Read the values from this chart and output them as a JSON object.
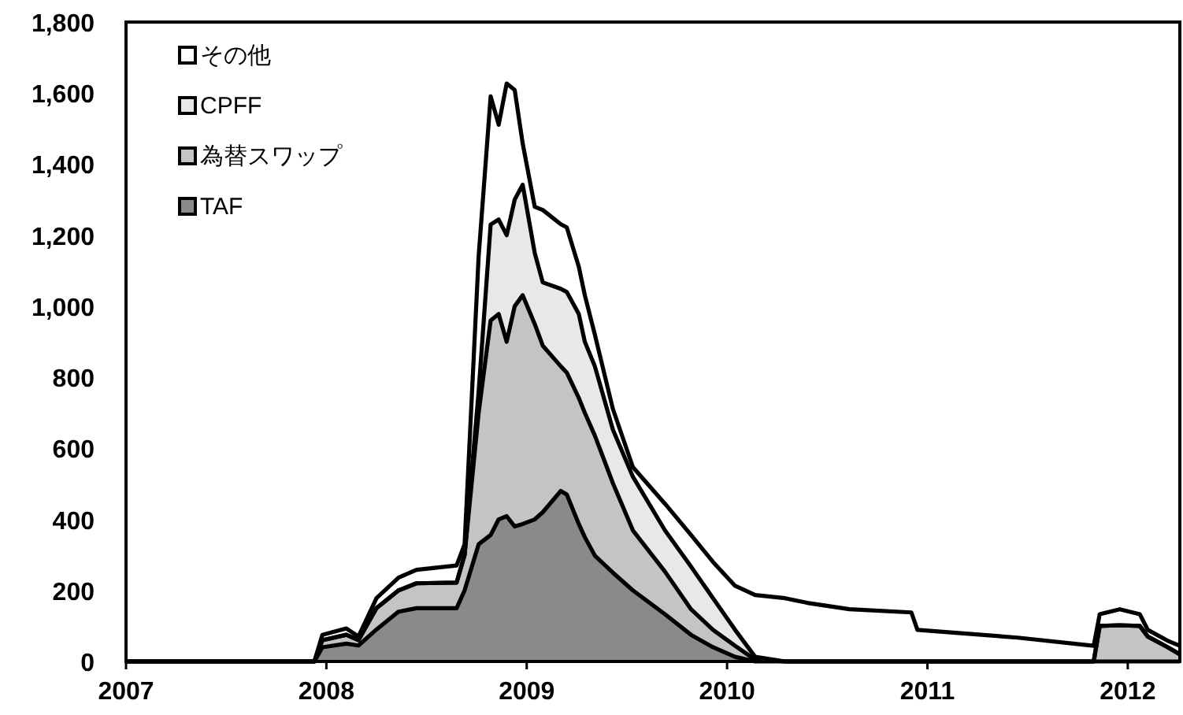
{
  "chart_data": {
    "type": "area",
    "stacked": true,
    "legend": "top left",
    "grid": false,
    "x": [
      2007.0,
      2007.94,
      2007.98,
      2008.1,
      2008.16,
      2008.25,
      2008.36,
      2008.45,
      2008.65,
      2008.69,
      2008.76,
      2008.82,
      2008.86,
      2008.9,
      2008.94,
      2008.98,
      2009.04,
      2009.08,
      2009.17,
      2009.2,
      2009.26,
      2009.29,
      2009.34,
      2009.43,
      2009.53,
      2009.69,
      2009.82,
      2009.93,
      2010.04,
      2010.14,
      2010.29,
      2010.4,
      2010.61,
      2010.92,
      2010.95,
      2011.45,
      2011.83,
      2011.86,
      2011.96,
      2012.06,
      2012.1,
      2012.2,
      2012.26
    ],
    "xlim": [
      2007,
      2012.26
    ],
    "xticks": [
      2007,
      2008,
      2009,
      2010,
      2011,
      2012
    ],
    "ylim": [
      0,
      1800
    ],
    "yticks": [
      0,
      200,
      400,
      600,
      800,
      {
        "value": 1000,
        "label": "1,000"
      },
      {
        "value": 1200,
        "label": "1,200"
      },
      {
        "value": 1400,
        "label": "1,400"
      },
      {
        "value": 1600,
        "label": "1,600"
      },
      {
        "value": 1800,
        "label": "1,800"
      }
    ],
    "series": [
      {
        "name": "TAF",
        "color": "#8a8a8a",
        "values": [
          0,
          0,
          40,
          50,
          45,
          90,
          140,
          150,
          150,
          200,
          330,
          356,
          400,
          409,
          380,
          387,
          400,
          420,
          480,
          470,
          387,
          350,
          298,
          250,
          200,
          133,
          75,
          40,
          13,
          0,
          0,
          0,
          0,
          0,
          0,
          0,
          0,
          0,
          0,
          0,
          0,
          0,
          0
        ]
      },
      {
        "name": "為替スワップ",
        "color": "#c4c4c4",
        "values": [
          0,
          0,
          20,
          25,
          15,
          60,
          60,
          70,
          72,
          100,
          370,
          604,
          578,
          491,
          620,
          644,
          550,
          469,
          351,
          343,
          355,
          350,
          338,
          252,
          169,
          120,
          72,
          49,
          31,
          5,
          0,
          0,
          0,
          0,
          0,
          0,
          0,
          100,
          102,
          100,
          70,
          40,
          20
        ]
      },
      {
        "name": "CPFF",
        "color": "#e8e8e8",
        "values": [
          0,
          0,
          0,
          0,
          0,
          0,
          0,
          0,
          0,
          0,
          60,
          270,
          266,
          300,
          300,
          311,
          200,
          178,
          218,
          227,
          236,
          200,
          195,
          151,
          151,
          116,
          120,
          89,
          45,
          8,
          0,
          0,
          0,
          0,
          0,
          0,
          0,
          0,
          0,
          0,
          0,
          0,
          0
        ]
      },
      {
        "name": "その他",
        "color": "#ffffff",
        "values": [
          0,
          0,
          15,
          18,
          10,
          28,
          36,
          38,
          48,
          30,
          380,
          361,
          267,
          427,
          309,
          116,
          130,
          204,
          182,
          182,
          133,
          131,
          89,
          58,
          27,
          75,
          89,
          102,
          124,
          174,
          178,
          165,
          147,
          138,
          89,
          67,
          44,
          33,
          45,
          33,
          19,
          18,
          24
        ]
      }
    ]
  }
}
